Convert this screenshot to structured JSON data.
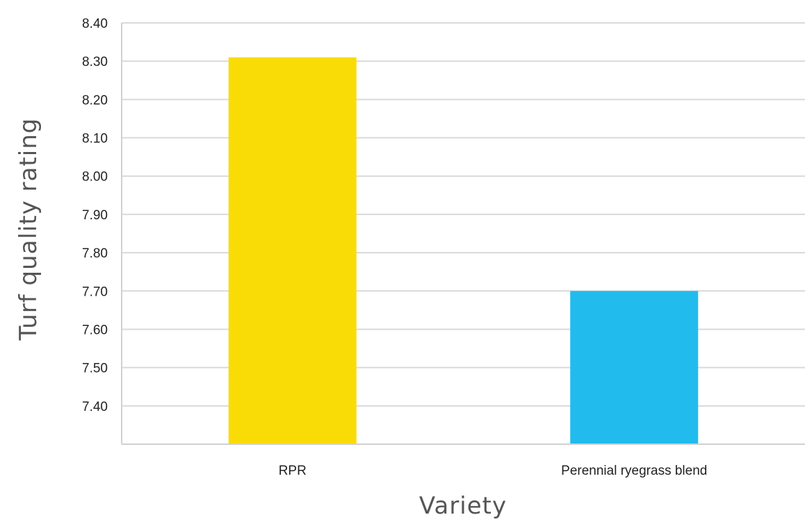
{
  "chart_data": {
    "type": "bar",
    "categories": [
      "RPR",
      "Perennial ryegrass blend"
    ],
    "values": [
      8.31,
      7.7
    ],
    "colors": [
      "#f9dc06",
      "#22bbee"
    ],
    "xlabel": "Variety",
    "ylabel": "Turf quality rating",
    "ylim": [
      7.3,
      8.4
    ],
    "yticks": [
      "7.40",
      "7.50",
      "7.60",
      "7.70",
      "7.80",
      "7.90",
      "8.00",
      "8.10",
      "8.20",
      "8.30",
      "8.40"
    ],
    "grid": true,
    "legend": "none"
  }
}
